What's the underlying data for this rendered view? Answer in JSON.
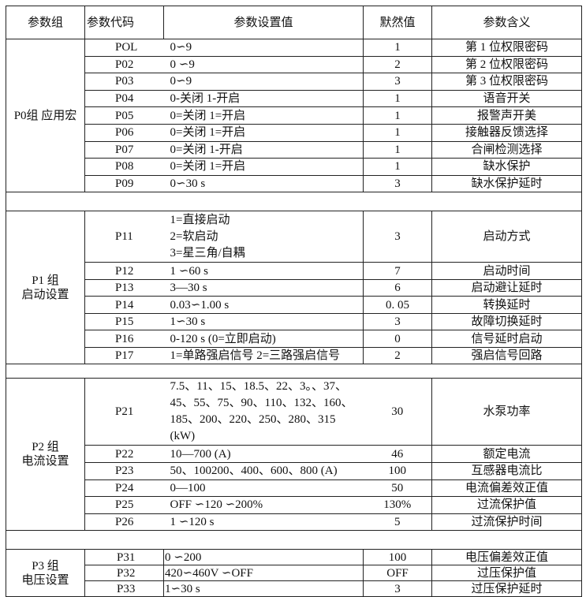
{
  "header": {
    "group": "参数组",
    "code": "参数代码",
    "value": "参数设置值",
    "default": "默然值",
    "meaning": "参数含义"
  },
  "groups": [
    {
      "label": "P0组  应用宏",
      "rows": [
        {
          "code": "POL",
          "value": "0∽9",
          "default": "1",
          "meaning": "第 1 位权限密码"
        },
        {
          "code": "P02",
          "value": "0 ∽9",
          "default": "2",
          "meaning": "第 2 位权限密码"
        },
        {
          "code": "P03",
          "value": "0∽9",
          "default": "3",
          "meaning": "第 3 位权限密码"
        },
        {
          "code": "P04",
          "value": "0-关闭 1-开启",
          "default": "1",
          "meaning": "语音开关"
        },
        {
          "code": "P05",
          "value": "0=关闭 1=开启",
          "default": "1",
          "meaning": "报警声开美"
        },
        {
          "code": "P06",
          "value": "0=关闭 1=开启",
          "default": "1",
          "meaning": "接触器反馈选择"
        },
        {
          "code": "P07",
          "value": "0=关闭 1-开启",
          "default": "1",
          "meaning": "合闸检测选择"
        },
        {
          "code": "P08",
          "value": "0=关闭 1=开启",
          "default": "1",
          "meaning": "缺水保护"
        },
        {
          "code": "P09",
          "value": "0∽30 s",
          "default": "3",
          "meaning": "缺水保护延时"
        }
      ]
    },
    {
      "label_line1": "P1 组",
      "label_line2": "启动设置",
      "rows": [
        {
          "code": "P11",
          "value_lines": [
            "1=直接启动",
            "2=软启动",
            "3=星三角/自耦"
          ],
          "default": "3",
          "meaning": "启动方式"
        },
        {
          "code": "P12",
          "value": "1 ∽60 s",
          "default": "7",
          "meaning": "启动时间"
        },
        {
          "code": "P13",
          "value": "3—30 s",
          "default": "6",
          "meaning": "启动避让延时"
        },
        {
          "code": "P14",
          "value": "0.03∽1.00 s",
          "default": "0. 05",
          "meaning": "转换延时"
        },
        {
          "code": "P15",
          "value": "1∽30 s",
          "default": "3",
          "meaning": "故障切换延时"
        },
        {
          "code": "P16",
          "value": "0-120 s (0=立即启动)",
          "default": "0",
          "meaning": "信号延时启动"
        },
        {
          "code": "P17",
          "value": "1=单路强启信号 2=三路强启信号",
          "default": "2",
          "meaning": "强启信号回路"
        }
      ]
    },
    {
      "label_line1": "P2 组",
      "label_line2": "电流设置",
      "rows": [
        {
          "code": "P21",
          "value_lines": [
            "7.5、11、15、18.5、22、3。、37、",
            "45、55、75、90、110、132、160、",
            "185、200、220、250、280、315 (kW)"
          ],
          "default": "30",
          "meaning": "水泵功率"
        },
        {
          "code": "P22",
          "value": "10—700 (A)",
          "default": "46",
          "meaning": "额定电流"
        },
        {
          "code": "P23",
          "value": "50、100200、400、600、800 (A)",
          "default": "100",
          "meaning": "互感器电流比"
        },
        {
          "code": "P24",
          "value": "0—100",
          "default": "50",
          "meaning": "电流偏差效正值"
        },
        {
          "code": "P25",
          "value": "OFF ∽120 ∽200%",
          "default": "130%",
          "meaning": "过流保护值"
        },
        {
          "code": "P26",
          "value": "1 ∽120 s",
          "default": "5",
          "meaning": "过流保护时间"
        }
      ]
    },
    {
      "label_line1": "P3 组",
      "label_line2": "电压设置",
      "rows": [
        {
          "code": "P31",
          "value": "0 ∽200",
          "default": "100",
          "meaning": "电压偏差效正值"
        },
        {
          "code": "P32",
          "value": "420∽460V ∽OFF",
          "default": "OFF",
          "meaning": "过压保护值"
        },
        {
          "code": "P33",
          "value": "1∽30 s",
          "default": "3",
          "meaning": "过压保护延时"
        }
      ]
    }
  ]
}
